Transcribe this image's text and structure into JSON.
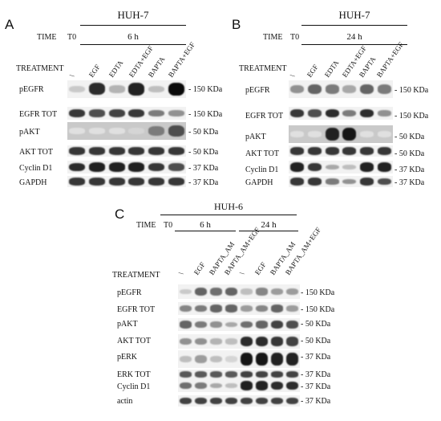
{
  "panels": [
    {
      "id": "A",
      "cell_line": "HUH-7",
      "time_label": "TIME",
      "time_groups": [
        "T0",
        "6 h"
      ],
      "treatment_label": "TREATMENT",
      "lanes": [
        "\\",
        "EGF",
        "EDTA",
        "EDTA+EGF",
        "BAPTA",
        "BAPTA+EGF"
      ],
      "rows": [
        {
          "label": "pEGFR",
          "mw": "- 150 KDa",
          "bands": [
            0.15,
            0.85,
            0.25,
            0.9,
            0.2,
            1.0
          ]
        },
        {
          "label": "EGFR TOT",
          "mw": "- 150 KDa",
          "bands": [
            0.8,
            0.7,
            0.75,
            0.8,
            0.5,
            0.4
          ]
        },
        {
          "label": "pAKT",
          "mw": "- 50 KDa",
          "bands": [
            0.05,
            0.05,
            0.05,
            0.1,
            0.5,
            0.7
          ]
        },
        {
          "label": "AKT TOT",
          "mw": "- 50 KDa",
          "bands": [
            0.8,
            0.8,
            0.8,
            0.8,
            0.8,
            0.8
          ]
        },
        {
          "label": "Cyclin D1",
          "mw": "- 37 KDa",
          "bands": [
            0.85,
            0.9,
            0.9,
            0.9,
            0.8,
            0.7
          ]
        },
        {
          "label": "GAPDH",
          "mw": "- 37 KDa",
          "bands": [
            0.8,
            0.8,
            0.8,
            0.8,
            0.8,
            0.8
          ]
        }
      ]
    },
    {
      "id": "B",
      "cell_line": "HUH-7",
      "time_label": "TIME",
      "time_groups": [
        "T0",
        "24 h"
      ],
      "treatment_label": "TREATMENT",
      "lanes": [
        "\\",
        "EGF",
        "EDTA",
        "EDTA+EGF",
        "BAPTA",
        "BAPTA+EGF"
      ],
      "rows": [
        {
          "label": "pEGFR",
          "mw": "- 150 KDa",
          "bands": [
            0.4,
            0.6,
            0.5,
            0.3,
            0.6,
            0.5
          ]
        },
        {
          "label": "EGFR TOT",
          "mw": "- 150 KDa",
          "bands": [
            0.8,
            0.7,
            0.85,
            0.5,
            0.85,
            0.4
          ]
        },
        {
          "label": "pAKT",
          "mw": "- 50 KDa",
          "bands": [
            0.05,
            0.05,
            0.9,
            0.95,
            0.05,
            0.05
          ]
        },
        {
          "label": "AKT TOT",
          "mw": "- 50 KDa",
          "bands": [
            0.8,
            0.8,
            0.8,
            0.8,
            0.8,
            0.8
          ]
        },
        {
          "label": "Cyclin D1",
          "mw": "- 37 KDa",
          "bands": [
            0.9,
            0.8,
            0.3,
            0.2,
            0.9,
            0.9
          ]
        },
        {
          "label": "GAPDH",
          "mw": "- 37 KDa",
          "bands": [
            0.8,
            0.8,
            0.5,
            0.4,
            0.8,
            0.7
          ]
        }
      ]
    },
    {
      "id": "C",
      "cell_line": "HUH-6",
      "time_label": "TIME",
      "time_groups": [
        "T0",
        "6 h",
        "24 h"
      ],
      "treatment_label": "TREATMENT",
      "lanes": [
        "\\",
        "EGF",
        "BAPTA_AM",
        "BAPTA_AM+EGF",
        "\\",
        "EGF",
        "BAPTA_AM",
        "BAPTA_AM+EGF"
      ],
      "rows": [
        {
          "label": "pEGFR",
          "mw": "- 150 KDa",
          "bands": [
            0.15,
            0.6,
            0.55,
            0.6,
            0.2,
            0.45,
            0.35,
            0.35
          ]
        },
        {
          "label": "EGFR TOT",
          "mw": "- 150 KDa",
          "bands": [
            0.45,
            0.5,
            0.6,
            0.6,
            0.35,
            0.45,
            0.6,
            0.35
          ]
        },
        {
          "label": "pAKT",
          "mw": "- 50 KDa",
          "bands": [
            0.6,
            0.5,
            0.4,
            0.3,
            0.55,
            0.6,
            0.75,
            0.7
          ]
        },
        {
          "label": "AKT TOT",
          "mw": "- 50 KDa",
          "bands": [
            0.4,
            0.4,
            0.25,
            0.2,
            0.85,
            0.85,
            0.8,
            0.75
          ]
        },
        {
          "label": "pERK",
          "mw": "- 37 KDa",
          "bands": [
            0.2,
            0.35,
            0.2,
            0.1,
            0.95,
            0.95,
            0.9,
            0.9
          ]
        },
        {
          "label": "ERK TOT",
          "mw": "- 37 KDa",
          "bands": [
            0.65,
            0.65,
            0.65,
            0.65,
            0.75,
            0.75,
            0.75,
            0.75
          ]
        },
        {
          "label": "Cyclin D1",
          "mw": "- 37 KDa",
          "bands": [
            0.55,
            0.5,
            0.3,
            0.2,
            0.9,
            0.9,
            0.85,
            0.85
          ]
        },
        {
          "label": "actin",
          "mw": "- 37 KDa",
          "bands": [
            0.75,
            0.75,
            0.75,
            0.75,
            0.75,
            0.75,
            0.75,
            0.75
          ]
        }
      ]
    }
  ]
}
